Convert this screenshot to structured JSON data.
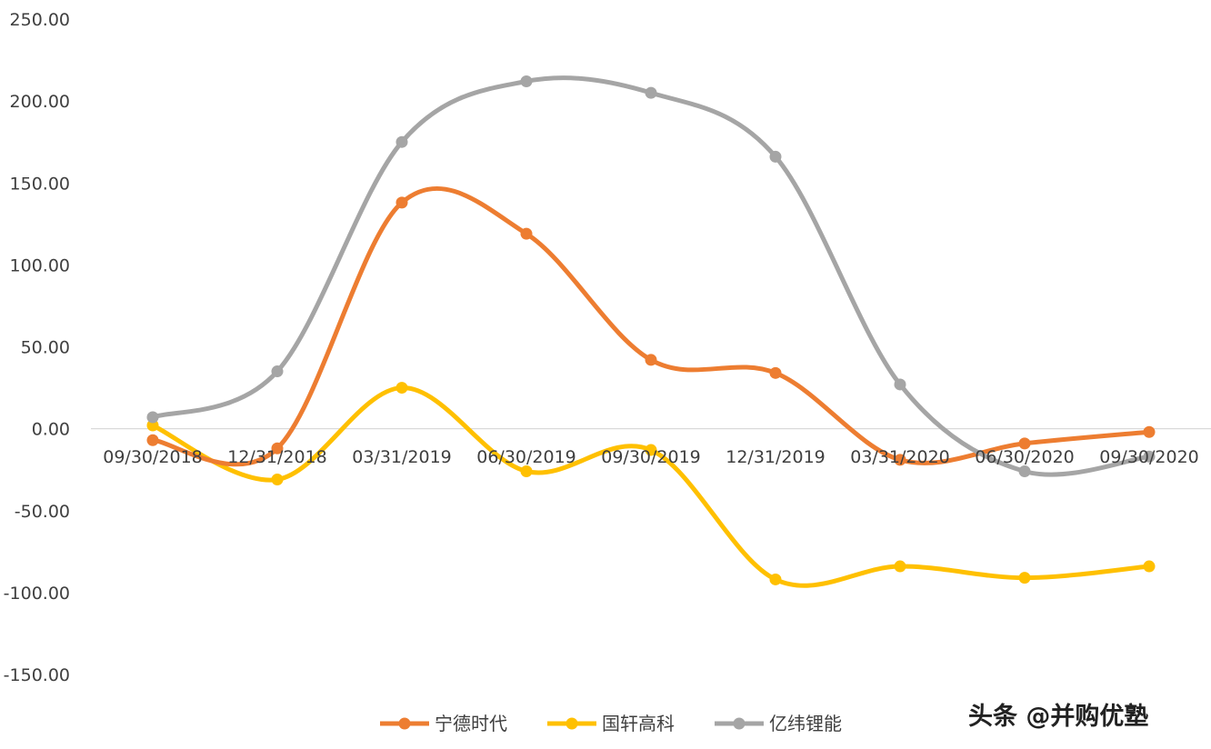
{
  "chart_data": {
    "type": "line",
    "categories": [
      "09/30/2018",
      "12/31/2018",
      "03/31/2019",
      "06/30/2019",
      "09/30/2019",
      "12/31/2019",
      "03/31/2020",
      "06/30/2020",
      "09/30/2020"
    ],
    "y_ticks": [
      "250.00",
      "200.00",
      "150.00",
      "100.00",
      "50.00",
      "0.00",
      "-50.00",
      "-100.00",
      "-150.00"
    ],
    "ylim": [
      -150,
      250
    ],
    "smooth": true,
    "grid": false,
    "legend_position": "bottom",
    "series": [
      {
        "name": "宁德时代",
        "color": "#ed7d31",
        "values": [
          -7,
          -12,
          138,
          119,
          42,
          34,
          -19,
          -9,
          -2
        ]
      },
      {
        "name": "国轩高科",
        "color": "#ffc000",
        "values": [
          2,
          -31,
          25,
          -26,
          -13,
          -92,
          -84,
          -91,
          -84
        ]
      },
      {
        "name": "亿纬锂能",
        "color": "#a5a5a5",
        "values": [
          7,
          35,
          175,
          212,
          205,
          166,
          27,
          -26,
          -17
        ]
      }
    ]
  },
  "watermark": "头条 @并购优塾"
}
